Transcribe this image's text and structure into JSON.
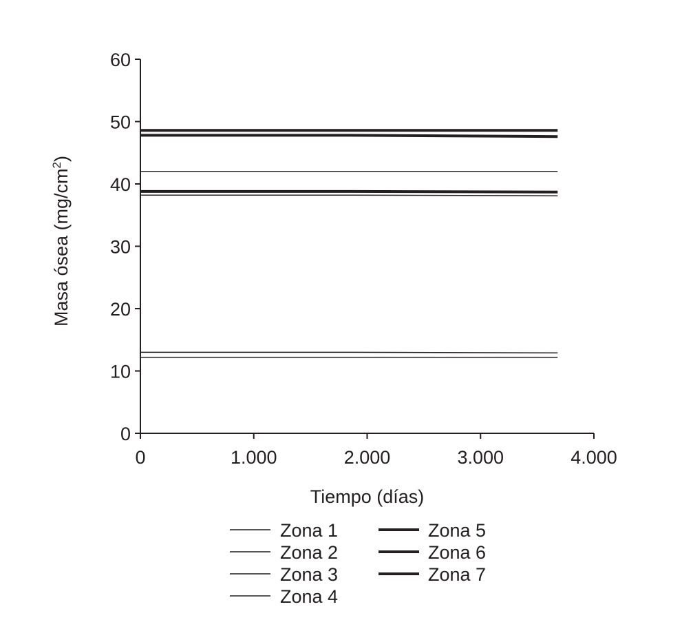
{
  "chart_data": {
    "type": "line",
    "title": "",
    "xlabel": "Tiempo (días)",
    "ylabel_main": "Masa ósea (mg/cm",
    "ylabel_sup": "2",
    "ylabel_close": ")",
    "xlim": [
      0,
      4000
    ],
    "ylim": [
      0,
      60
    ],
    "grid": false,
    "x_ticks": [
      0,
      1000,
      2000,
      3000,
      4000
    ],
    "x_tick_labels": [
      "0",
      "1.000",
      "2.000",
      "3.000",
      "4.000"
    ],
    "y_ticks": [
      0,
      10,
      20,
      30,
      40,
      50,
      60
    ],
    "y_tick_labels": [
      "0",
      "10",
      "20",
      "30",
      "40",
      "50",
      "60"
    ],
    "legend_position": "bottom",
    "series": [
      {
        "name": "Zona 1",
        "weight": "thin",
        "color": "#231f20",
        "x": [
          0,
          1850,
          3680
        ],
        "y": [
          42.0,
          42.0,
          42.0
        ]
      },
      {
        "name": "Zona 2",
        "weight": "thin",
        "color": "#231f20",
        "x": [
          0,
          1850,
          3680
        ],
        "y": [
          38.2,
          38.2,
          38.1
        ]
      },
      {
        "name": "Zona 3",
        "weight": "thin",
        "color": "#231f20",
        "x": [
          0,
          1850,
          3680
        ],
        "y": [
          13.0,
          13.0,
          12.9
        ]
      },
      {
        "name": "Zona 4",
        "weight": "thin",
        "color": "#231f20",
        "x": [
          0,
          1850,
          3680
        ],
        "y": [
          12.2,
          12.2,
          12.2
        ]
      },
      {
        "name": "Zona 5",
        "weight": "thick",
        "color": "#231f20",
        "x": [
          0,
          1850,
          3680
        ],
        "y": [
          48.6,
          48.6,
          48.6
        ]
      },
      {
        "name": "Zona 6",
        "weight": "thick",
        "color": "#231f20",
        "x": [
          0,
          1850,
          3680
        ],
        "y": [
          47.8,
          47.8,
          47.6
        ]
      },
      {
        "name": "Zona 7",
        "weight": "thick",
        "color": "#231f20",
        "x": [
          0,
          1850,
          3680
        ],
        "y": [
          38.8,
          38.8,
          38.7
        ]
      }
    ]
  }
}
